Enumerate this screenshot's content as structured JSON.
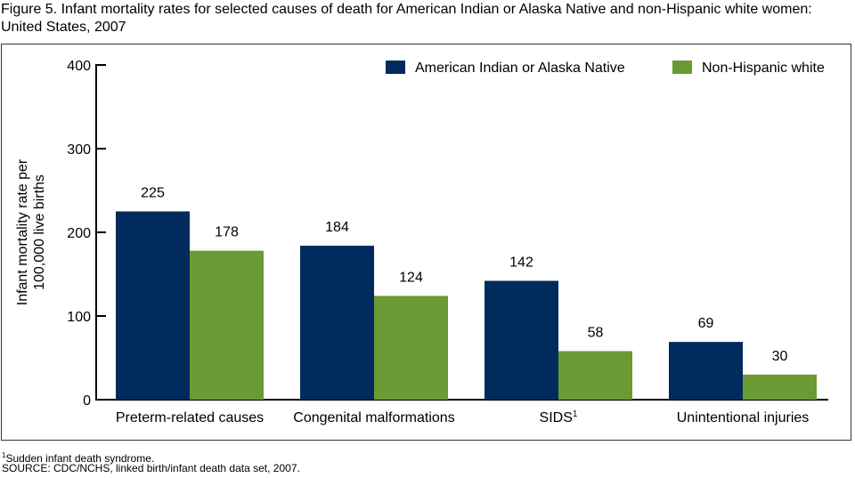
{
  "chart_data": {
    "type": "bar",
    "title": "Figure 5. Infant mortality rates for selected causes of death for American Indian or Alaska Native and non-Hispanic white women: United States, 2007",
    "ylabel": [
      "Infant mortality rate per",
      "100,000 live births"
    ],
    "xlabel": "",
    "ylim": [
      0,
      400
    ],
    "yticks": [
      0,
      100,
      200,
      300,
      400
    ],
    "categories": [
      "Preterm-related causes",
      "Congenital malformations",
      "SIDS",
      "Unintentional injuries"
    ],
    "category_superscripts": [
      "",
      "",
      "1",
      ""
    ],
    "series": [
      {
        "name": "American Indian or Alaska Native",
        "color": "#002b5c",
        "values": [
          225,
          184,
          142,
          69
        ]
      },
      {
        "name": "Non-Hispanic white",
        "color": "#6a9a33",
        "values": [
          178,
          124,
          58,
          30
        ]
      }
    ],
    "legend": "top-right",
    "grid": false
  },
  "footnotes": {
    "sup": "1",
    "note": "Sudden infant death syndrome.",
    "source": "SOURCE: CDC/NCHS, linked birth/infant death data set, 2007."
  }
}
